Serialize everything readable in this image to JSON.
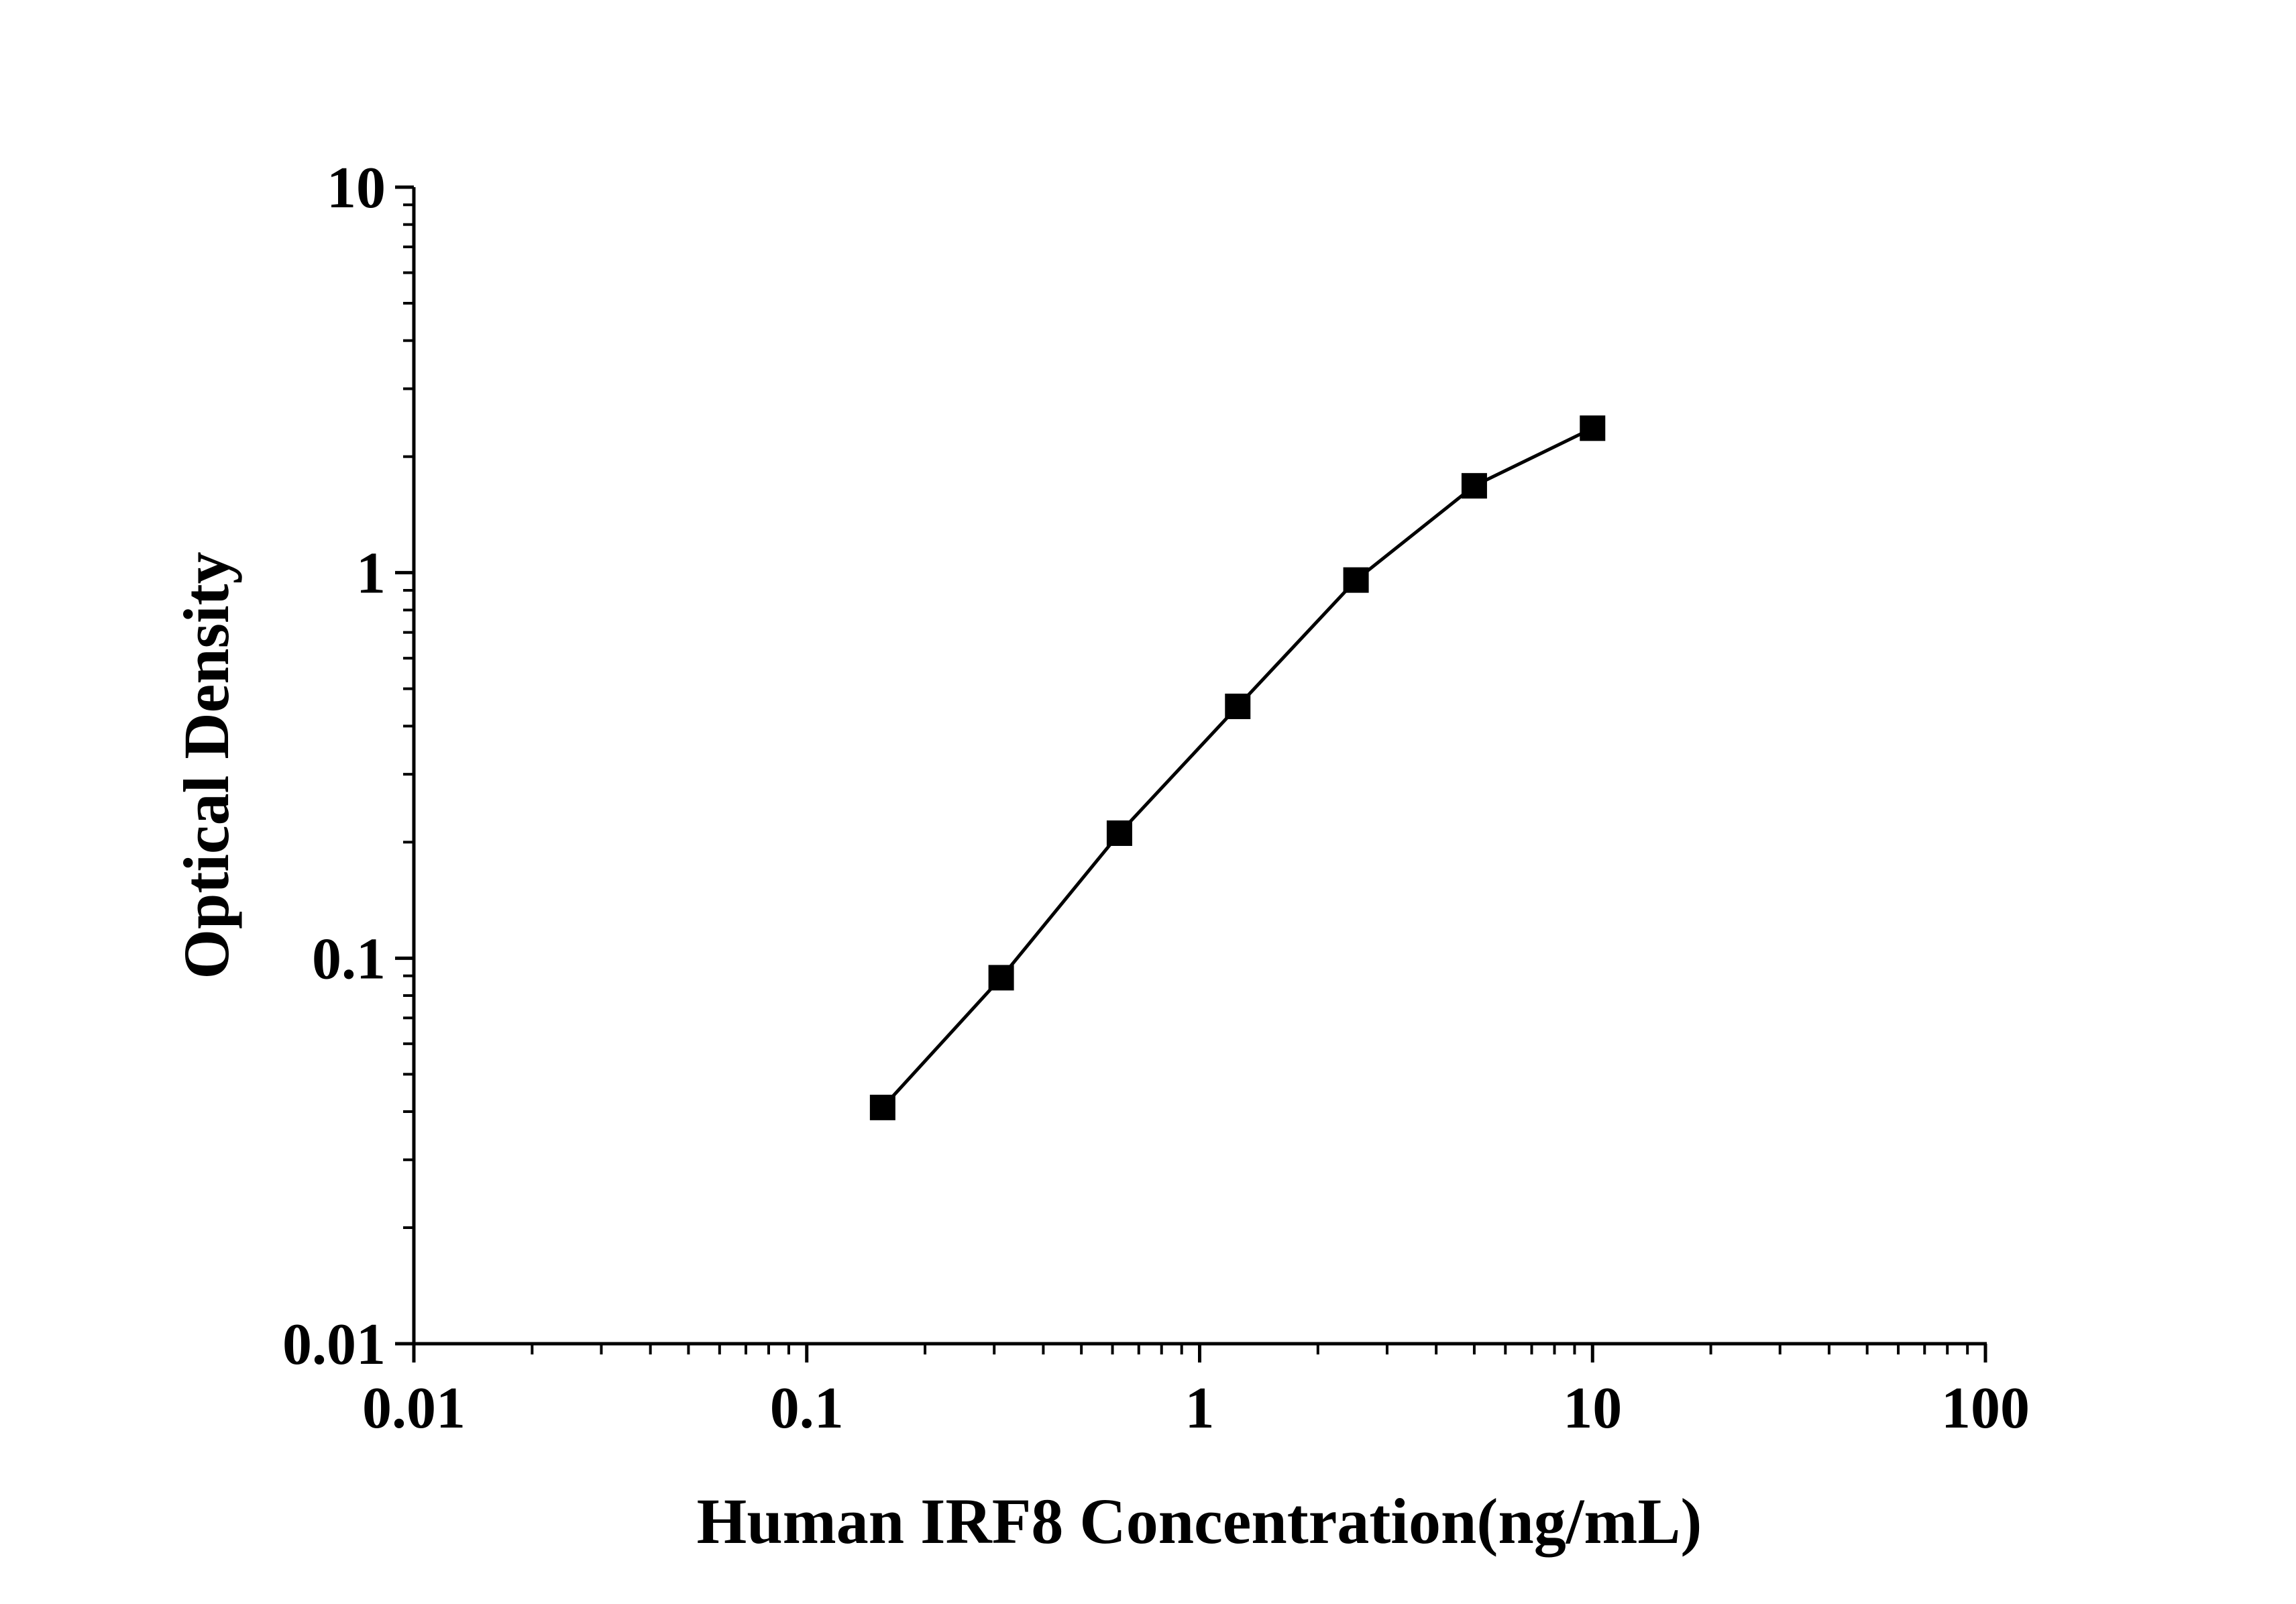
{
  "chart_data": {
    "type": "line",
    "title": "",
    "xlabel": "Human IRF8 Concentration(ng/mL)",
    "ylabel": "Optical Density",
    "x_scale": "log",
    "y_scale": "log",
    "xlim": [
      0.01,
      100
    ],
    "ylim": [
      0.01,
      10
    ],
    "x_ticks": [
      "0.01",
      "0.1",
      "1",
      "10",
      "100"
    ],
    "y_ticks": [
      "0.01",
      "0.1",
      "1",
      "10"
    ],
    "grid": false,
    "marker": "square",
    "color": "#000000",
    "series": [
      {
        "x": [
          0.156,
          0.3125,
          0.625,
          1.25,
          2.5,
          5,
          10
        ],
        "y": [
          0.041,
          0.089,
          0.211,
          0.45,
          0.957,
          1.68,
          2.37
        ]
      }
    ]
  }
}
